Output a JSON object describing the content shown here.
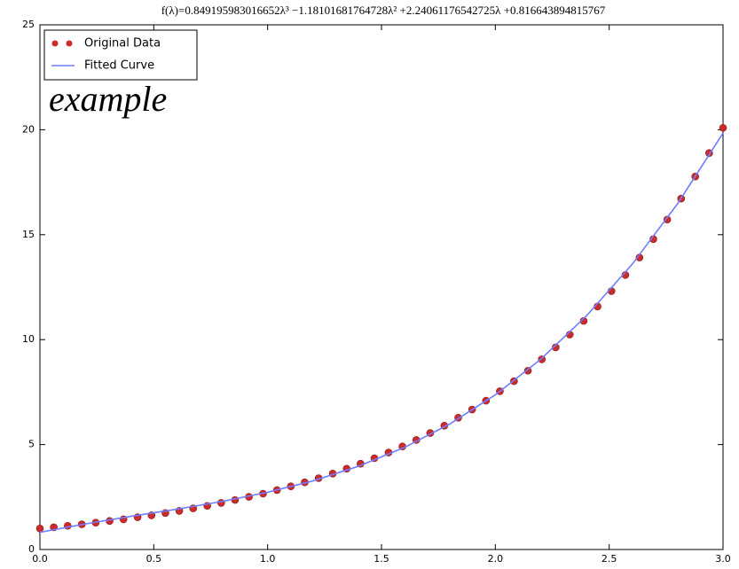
{
  "chart_data": {
    "type": "line",
    "title": "f(λ)=0.849195983016652λ³ −1.18101681764728λ² +2.24061176542725λ +0.816643894815767",
    "annotation": "example",
    "xlim": [
      0,
      3
    ],
    "ylim": [
      0,
      25
    ],
    "xticks": [
      {
        "value": 0,
        "label": "0.0"
      },
      0.5,
      {
        "value": 1,
        "label": "1.0"
      },
      1.5,
      {
        "value": 2,
        "label": "2.0"
      },
      2.5,
      {
        "value": 3,
        "label": "3.0"
      }
    ],
    "yticks": [
      0,
      5,
      10,
      15,
      20,
      25
    ],
    "legend": "upper left",
    "series": [
      {
        "name": "Original Data",
        "type": "scatter",
        "color": "#cc2b2b",
        "x": [
          0,
          0.061,
          0.122,
          0.184,
          0.245,
          0.306,
          0.367,
          0.429,
          0.49,
          0.551,
          0.612,
          0.673,
          0.735,
          0.796,
          0.857,
          0.918,
          0.98,
          1.041,
          1.102,
          1.163,
          1.224,
          1.286,
          1.347,
          1.408,
          1.469,
          1.531,
          1.592,
          1.653,
          1.714,
          1.776,
          1.837,
          1.898,
          1.959,
          2.02,
          2.082,
          2.143,
          2.204,
          2.265,
          2.327,
          2.388,
          2.449,
          2.51,
          2.571,
          2.633,
          2.694,
          2.755,
          2.816,
          2.878,
          2.939,
          3.0
        ],
        "values": [
          1.0,
          1.06,
          1.13,
          1.2,
          1.28,
          1.36,
          1.44,
          1.54,
          1.63,
          1.74,
          1.84,
          1.96,
          2.08,
          2.22,
          2.36,
          2.51,
          2.66,
          2.83,
          3.01,
          3.2,
          3.4,
          3.62,
          3.85,
          4.09,
          4.35,
          4.62,
          4.91,
          5.22,
          5.55,
          5.9,
          6.28,
          6.67,
          7.09,
          7.54,
          8.02,
          8.52,
          9.06,
          9.63,
          10.24,
          10.89,
          11.58,
          12.31,
          13.08,
          13.91,
          14.79,
          15.72,
          16.72,
          17.77,
          18.89,
          20.09
        ]
      },
      {
        "name": "Fitted Curve",
        "type": "line",
        "color": "#6f7dff",
        "x": [
          0,
          0.2,
          0.4,
          0.6,
          0.8,
          1.0,
          1.2,
          1.4,
          1.6,
          1.8,
          2.0,
          2.2,
          2.4,
          2.6,
          2.8,
          3.0
        ],
        "values": [
          0.82,
          1.22,
          1.58,
          1.92,
          2.29,
          2.73,
          3.27,
          3.97,
          4.86,
          5.98,
          7.37,
          9.07,
          11.13,
          13.58,
          16.47,
          19.84
        ]
      }
    ]
  }
}
